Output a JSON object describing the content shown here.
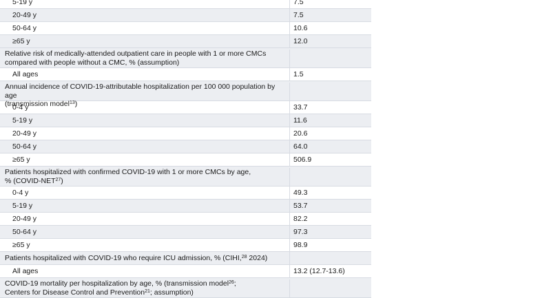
{
  "rows": [
    {
      "label": "5-19 y",
      "value": "7.5"
    },
    {
      "label": "20-49 y",
      "value": "7.5"
    },
    {
      "label": "50-64 y",
      "value": "10.6"
    },
    {
      "label": "≥65 y",
      "value": "12.0"
    },
    {
      "header_line1": "Relative risk of medically-attended outpatient care in people with 1 or more CMCs",
      "header_line2": "compared with people without a CMC, % (assumption)"
    },
    {
      "label": "All ages",
      "value": "1.5"
    },
    {
      "header_line1": "Annual incidence of COVID-19-attributable hospitalization per 100 000 population by age",
      "header_line2": "(transmission model",
      "header_sup": "13",
      "header_tail": ")"
    },
    {
      "label": "0-4 y",
      "value": "33.7"
    },
    {
      "label": "5-19 y",
      "value": "11.6"
    },
    {
      "label": "20-49 y",
      "value": "20.6"
    },
    {
      "label": "50-64 y",
      "value": "64.0"
    },
    {
      "label": "≥65 y",
      "value": "506.9"
    },
    {
      "header_line1": "Patients hospitalized with confirmed COVID-19 with 1 or more CMCs by age,",
      "header_line2": "% (COVID-NET",
      "header_sup": "27",
      "header_tail": ")"
    },
    {
      "label": "0-4 y",
      "value": "49.3"
    },
    {
      "label": "5-19 y",
      "value": "53.7"
    },
    {
      "label": "20-49 y",
      "value": "82.2"
    },
    {
      "label": "50-64 y",
      "value": "97.3"
    },
    {
      "label": "≥65 y",
      "value": "98.9"
    },
    {
      "header_pre": "Patients hospitalized with COVID-19 who require ICU admission, % (CIHI,",
      "header_sup": "28",
      "header_post": " 2024)"
    },
    {
      "label": "All ages",
      "value": "13.2 (12.7-13.6)"
    },
    {
      "header_pre": "COVID-19 mortality per hospitalization by age, % (transmission model",
      "header_sup": "26",
      "header_post": ";",
      "header_line2": "Centers for Disease Control and Prevention",
      "header_sup2": "21",
      "header_tail": "; assumption)"
    }
  ]
}
